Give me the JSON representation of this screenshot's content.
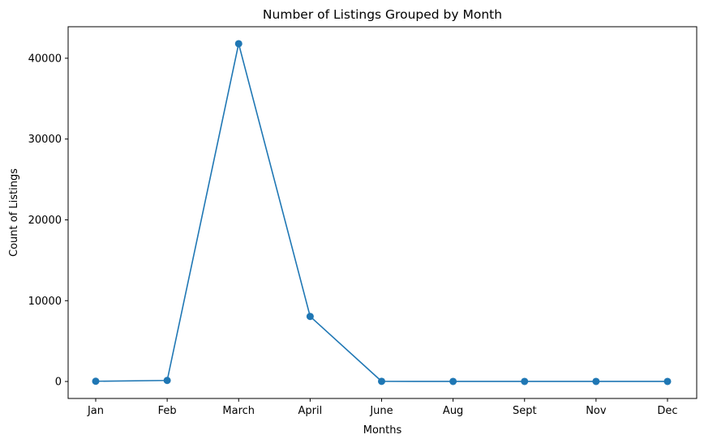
{
  "chart_data": {
    "type": "line",
    "title": "Number of Listings Grouped by Month",
    "xlabel": "Months",
    "ylabel": "Count of Listings",
    "categories": [
      "Jan",
      "Feb",
      "March",
      "April",
      "June",
      "Aug",
      "Sept",
      "Nov",
      "Dec"
    ],
    "series": [
      {
        "values": [
          30,
          130,
          41800,
          8050,
          20,
          10,
          10,
          10,
          10
        ]
      }
    ],
    "yticks": [
      0,
      10000,
      20000,
      30000,
      40000
    ],
    "ytick_labels": [
      "0",
      "10000",
      "20000",
      "30000",
      "40000"
    ],
    "ylim": [
      -2100,
      43900
    ],
    "grid": false,
    "markers": "circle",
    "line_color": "#1f77b4"
  }
}
